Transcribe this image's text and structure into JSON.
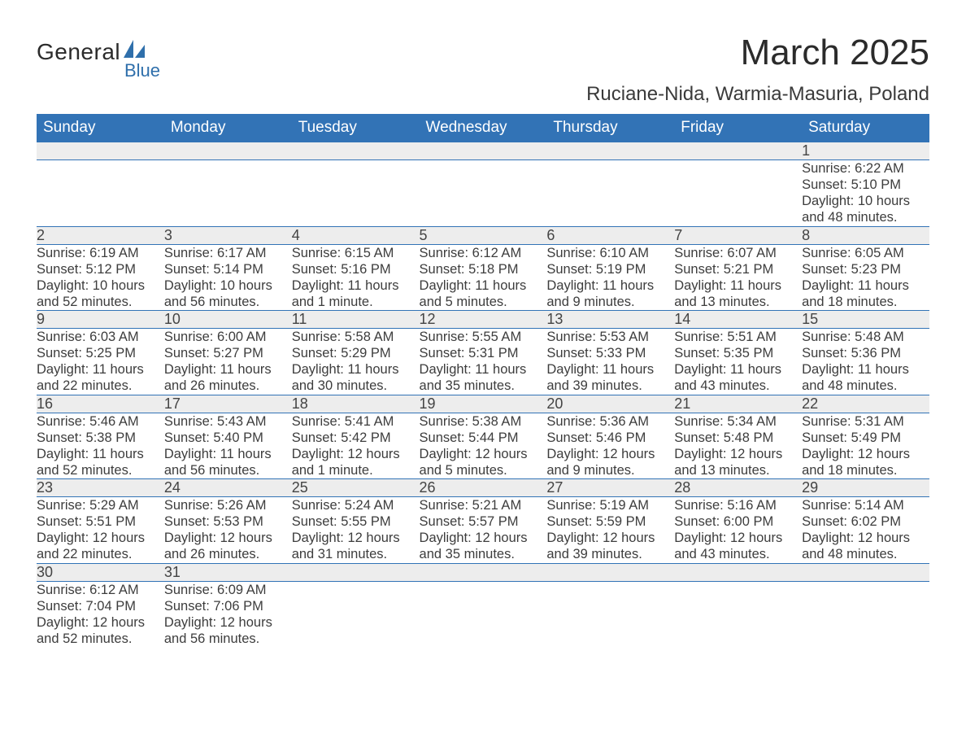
{
  "logo": {
    "line1": "General",
    "line2": "Blue",
    "icon_color": "#2f6fab"
  },
  "title": "March 2025",
  "location": "Ruciane-Nida, Warmia-Masuria, Poland",
  "colors": {
    "header_bg": "#3273b6",
    "header_text": "#ffffff",
    "daynum_bg": "#ededed",
    "row_divider": "#3273b6",
    "body_text": "#3d3d3d"
  },
  "weekdays": [
    "Sunday",
    "Monday",
    "Tuesday",
    "Wednesday",
    "Thursday",
    "Friday",
    "Saturday"
  ],
  "weeks": [
    [
      null,
      null,
      null,
      null,
      null,
      null,
      {
        "n": "1",
        "sunrise": "6:22 AM",
        "sunset": "5:10 PM",
        "daylight": "10 hours and 48 minutes."
      }
    ],
    [
      {
        "n": "2",
        "sunrise": "6:19 AM",
        "sunset": "5:12 PM",
        "daylight": "10 hours and 52 minutes."
      },
      {
        "n": "3",
        "sunrise": "6:17 AM",
        "sunset": "5:14 PM",
        "daylight": "10 hours and 56 minutes."
      },
      {
        "n": "4",
        "sunrise": "6:15 AM",
        "sunset": "5:16 PM",
        "daylight": "11 hours and 1 minute."
      },
      {
        "n": "5",
        "sunrise": "6:12 AM",
        "sunset": "5:18 PM",
        "daylight": "11 hours and 5 minutes."
      },
      {
        "n": "6",
        "sunrise": "6:10 AM",
        "sunset": "5:19 PM",
        "daylight": "11 hours and 9 minutes."
      },
      {
        "n": "7",
        "sunrise": "6:07 AM",
        "sunset": "5:21 PM",
        "daylight": "11 hours and 13 minutes."
      },
      {
        "n": "8",
        "sunrise": "6:05 AM",
        "sunset": "5:23 PM",
        "daylight": "11 hours and 18 minutes."
      }
    ],
    [
      {
        "n": "9",
        "sunrise": "6:03 AM",
        "sunset": "5:25 PM",
        "daylight": "11 hours and 22 minutes."
      },
      {
        "n": "10",
        "sunrise": "6:00 AM",
        "sunset": "5:27 PM",
        "daylight": "11 hours and 26 minutes."
      },
      {
        "n": "11",
        "sunrise": "5:58 AM",
        "sunset": "5:29 PM",
        "daylight": "11 hours and 30 minutes."
      },
      {
        "n": "12",
        "sunrise": "5:55 AM",
        "sunset": "5:31 PM",
        "daylight": "11 hours and 35 minutes."
      },
      {
        "n": "13",
        "sunrise": "5:53 AM",
        "sunset": "5:33 PM",
        "daylight": "11 hours and 39 minutes."
      },
      {
        "n": "14",
        "sunrise": "5:51 AM",
        "sunset": "5:35 PM",
        "daylight": "11 hours and 43 minutes."
      },
      {
        "n": "15",
        "sunrise": "5:48 AM",
        "sunset": "5:36 PM",
        "daylight": "11 hours and 48 minutes."
      }
    ],
    [
      {
        "n": "16",
        "sunrise": "5:46 AM",
        "sunset": "5:38 PM",
        "daylight": "11 hours and 52 minutes."
      },
      {
        "n": "17",
        "sunrise": "5:43 AM",
        "sunset": "5:40 PM",
        "daylight": "11 hours and 56 minutes."
      },
      {
        "n": "18",
        "sunrise": "5:41 AM",
        "sunset": "5:42 PM",
        "daylight": "12 hours and 1 minute."
      },
      {
        "n": "19",
        "sunrise": "5:38 AM",
        "sunset": "5:44 PM",
        "daylight": "12 hours and 5 minutes."
      },
      {
        "n": "20",
        "sunrise": "5:36 AM",
        "sunset": "5:46 PM",
        "daylight": "12 hours and 9 minutes."
      },
      {
        "n": "21",
        "sunrise": "5:34 AM",
        "sunset": "5:48 PM",
        "daylight": "12 hours and 13 minutes."
      },
      {
        "n": "22",
        "sunrise": "5:31 AM",
        "sunset": "5:49 PM",
        "daylight": "12 hours and 18 minutes."
      }
    ],
    [
      {
        "n": "23",
        "sunrise": "5:29 AM",
        "sunset": "5:51 PM",
        "daylight": "12 hours and 22 minutes."
      },
      {
        "n": "24",
        "sunrise": "5:26 AM",
        "sunset": "5:53 PM",
        "daylight": "12 hours and 26 minutes."
      },
      {
        "n": "25",
        "sunrise": "5:24 AM",
        "sunset": "5:55 PM",
        "daylight": "12 hours and 31 minutes."
      },
      {
        "n": "26",
        "sunrise": "5:21 AM",
        "sunset": "5:57 PM",
        "daylight": "12 hours and 35 minutes."
      },
      {
        "n": "27",
        "sunrise": "5:19 AM",
        "sunset": "5:59 PM",
        "daylight": "12 hours and 39 minutes."
      },
      {
        "n": "28",
        "sunrise": "5:16 AM",
        "sunset": "6:00 PM",
        "daylight": "12 hours and 43 minutes."
      },
      {
        "n": "29",
        "sunrise": "5:14 AM",
        "sunset": "6:02 PM",
        "daylight": "12 hours and 48 minutes."
      }
    ],
    [
      {
        "n": "30",
        "sunrise": "6:12 AM",
        "sunset": "7:04 PM",
        "daylight": "12 hours and 52 minutes."
      },
      {
        "n": "31",
        "sunrise": "6:09 AM",
        "sunset": "7:06 PM",
        "daylight": "12 hours and 56 minutes."
      },
      null,
      null,
      null,
      null,
      null
    ]
  ],
  "labels": {
    "sunrise": "Sunrise: ",
    "sunset": "Sunset: ",
    "daylight": "Daylight: "
  }
}
